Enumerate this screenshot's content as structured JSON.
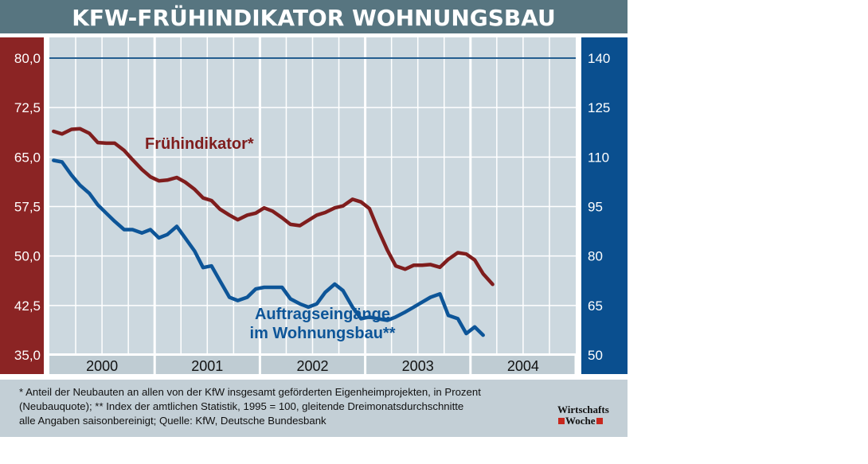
{
  "colors": {
    "left_axis_bg": "#8b2424",
    "right_axis_bg": "#0a4f8f",
    "title_bar": "#577580",
    "plot_bg": "#ccd8df",
    "footer_bg": "#c3cfd6",
    "series_red": "#7f1d1d",
    "series_blue": "#0d5598"
  },
  "chart_data": {
    "type": "line",
    "title": "KFW-FRÜHINDIKATOR WOHNUNGSBAU",
    "x_categories": [
      "2000",
      "2001",
      "2002",
      "2003",
      "2004"
    ],
    "x_range": [
      2000.0,
      2005.0
    ],
    "grid": true,
    "left_axis": {
      "ylim": [
        35.0,
        80.0
      ],
      "ticks": [
        "80,0",
        "72,5",
        "65,0",
        "57,5",
        "50,0",
        "42,5",
        "35,0"
      ]
    },
    "right_axis": {
      "ylim": [
        50,
        140
      ],
      "ticks": [
        "140",
        "125",
        "110",
        "95",
        "80",
        "65",
        "50"
      ]
    },
    "series": [
      {
        "name": "Frühindikator*",
        "axis": "left",
        "x": [
          2000.04,
          2000.12,
          2000.21,
          2000.29,
          2000.38,
          2000.46,
          2000.54,
          2000.62,
          2000.71,
          2000.79,
          2000.88,
          2000.96,
          2001.04,
          2001.12,
          2001.21,
          2001.29,
          2001.38,
          2001.46,
          2001.54,
          2001.62,
          2001.71,
          2001.79,
          2001.88,
          2001.96,
          2002.04,
          2002.12,
          2002.21,
          2002.29,
          2002.38,
          2002.46,
          2002.54,
          2002.62,
          2002.71,
          2002.79,
          2002.88,
          2002.96,
          2003.04,
          2003.12,
          2003.21,
          2003.29,
          2003.38,
          2003.46,
          2003.54,
          2003.62,
          2003.71,
          2003.79,
          2003.88,
          2003.96,
          2004.04,
          2004.12,
          2004.21
        ],
        "values": [
          68.9,
          68.5,
          69.2,
          69.3,
          68.6,
          67.2,
          67.1,
          67.1,
          66.0,
          64.6,
          63.1,
          62.0,
          61.4,
          61.5,
          61.9,
          61.2,
          60.1,
          58.8,
          58.4,
          57.1,
          56.2,
          55.5,
          56.2,
          56.5,
          57.3,
          56.8,
          55.8,
          54.8,
          54.6,
          55.4,
          56.2,
          56.6,
          57.3,
          57.6,
          58.6,
          58.2,
          57.2,
          54.1,
          50.9,
          48.5,
          48.0,
          48.6,
          48.6,
          48.7,
          48.3,
          49.5,
          50.5,
          50.3,
          49.4,
          47.3,
          45.7
        ]
      },
      {
        "name": "Auftragseingänge im Wohnungsbau**",
        "axis": "right",
        "x": [
          2000.04,
          2000.12,
          2000.21,
          2000.29,
          2000.38,
          2000.46,
          2000.54,
          2000.62,
          2000.71,
          2000.79,
          2000.88,
          2000.96,
          2001.04,
          2001.12,
          2001.21,
          2001.29,
          2001.38,
          2001.46,
          2001.54,
          2001.62,
          2001.71,
          2001.79,
          2001.88,
          2001.96,
          2002.04,
          2002.12,
          2002.21,
          2002.29,
          2002.38,
          2002.46,
          2002.54,
          2002.62,
          2002.71,
          2002.79,
          2002.88,
          2002.96,
          2003.04,
          2003.12,
          2003.21,
          2003.29,
          2003.38,
          2003.46,
          2003.54,
          2003.62,
          2003.71,
          2003.79,
          2003.88,
          2003.96,
          2004.04,
          2004.12
        ],
        "values": [
          109.0,
          108.5,
          104.5,
          101.5,
          99.0,
          95.5,
          93.0,
          90.5,
          88.0,
          88.0,
          87.0,
          88.0,
          85.5,
          86.5,
          89.0,
          85.5,
          81.5,
          76.5,
          77.0,
          72.5,
          67.5,
          66.5,
          67.5,
          70.0,
          70.5,
          70.5,
          70.5,
          67.0,
          65.5,
          64.5,
          65.5,
          69.0,
          71.5,
          69.5,
          64.5,
          61.0,
          61.5,
          61.0,
          60.5,
          61.5,
          63.0,
          64.5,
          66.0,
          67.5,
          68.5,
          62.0,
          61.0,
          56.5,
          58.5,
          56.0
        ]
      }
    ]
  },
  "labels": {
    "red_series_label": "Frühindikator*",
    "blue_series_label_line1": "Auftragseingänge",
    "blue_series_label_line2": "im Wohnungsbau**"
  },
  "footnote": {
    "line1": "* Anteil der Neubauten an allen von der KfW insgesamt geförderten Eigenheimprojekten, in Prozent",
    "line2": "(Neubauquote); ** Index der amtlichen Statistik, 1995 = 100, gleitende Dreimonatsdurchschnitte",
    "line3": "alle Angaben saisonbereinigt; Quelle: KfW, Deutsche Bundesbank"
  },
  "logo": {
    "line1": "Wirtschafts",
    "line2": "Woche"
  }
}
